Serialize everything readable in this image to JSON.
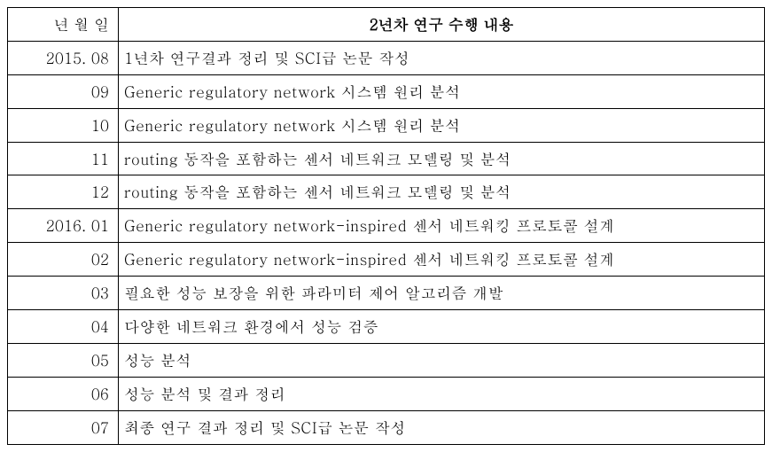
{
  "table": {
    "headers": {
      "date": "년 월 일",
      "content": "2년차 연구 수행 내용"
    },
    "rows": [
      {
        "date": "2015. 08",
        "content": "1년차 연구결과 정리 및 SCI급 논문 작성"
      },
      {
        "date": "09",
        "content": "Generic regulatory network 시스템 원리 분석"
      },
      {
        "date": "10",
        "content": "Generic regulatory network 시스템 원리 분석"
      },
      {
        "date": "11",
        "content": "routing 동작을 포함하는 센서 네트워크 모델링 및 분석"
      },
      {
        "date": "12",
        "content": "routing 동작을 포함하는 센서 네트워크 모델링 및 분석"
      },
      {
        "date": "2016. 01",
        "content": "Generic regulatory network-inspired 센서 네트워킹 프로토콜 설계"
      },
      {
        "date": "02",
        "content": "Generic regulatory network-inspired 센서 네트워킹 프로토콜 설계"
      },
      {
        "date": "03",
        "content": "필요한 성능 보장을 위한 파라미터 제어 알고리즘 개발"
      },
      {
        "date": "04",
        "content": "다양한 네트워크 환경에서 성능 검증"
      },
      {
        "date": "05",
        "content": "성능 분석"
      },
      {
        "date": "06",
        "content": "성능 분석 및 결과 정리"
      },
      {
        "date": "07",
        "content": "최종 연구 결과 정리 및 SCI급 논문 작성"
      }
    ],
    "styling": {
      "border_color": "#000000",
      "background_color": "#ffffff",
      "font_size": 17,
      "date_col_width": 125,
      "header_bold_title": true
    }
  }
}
